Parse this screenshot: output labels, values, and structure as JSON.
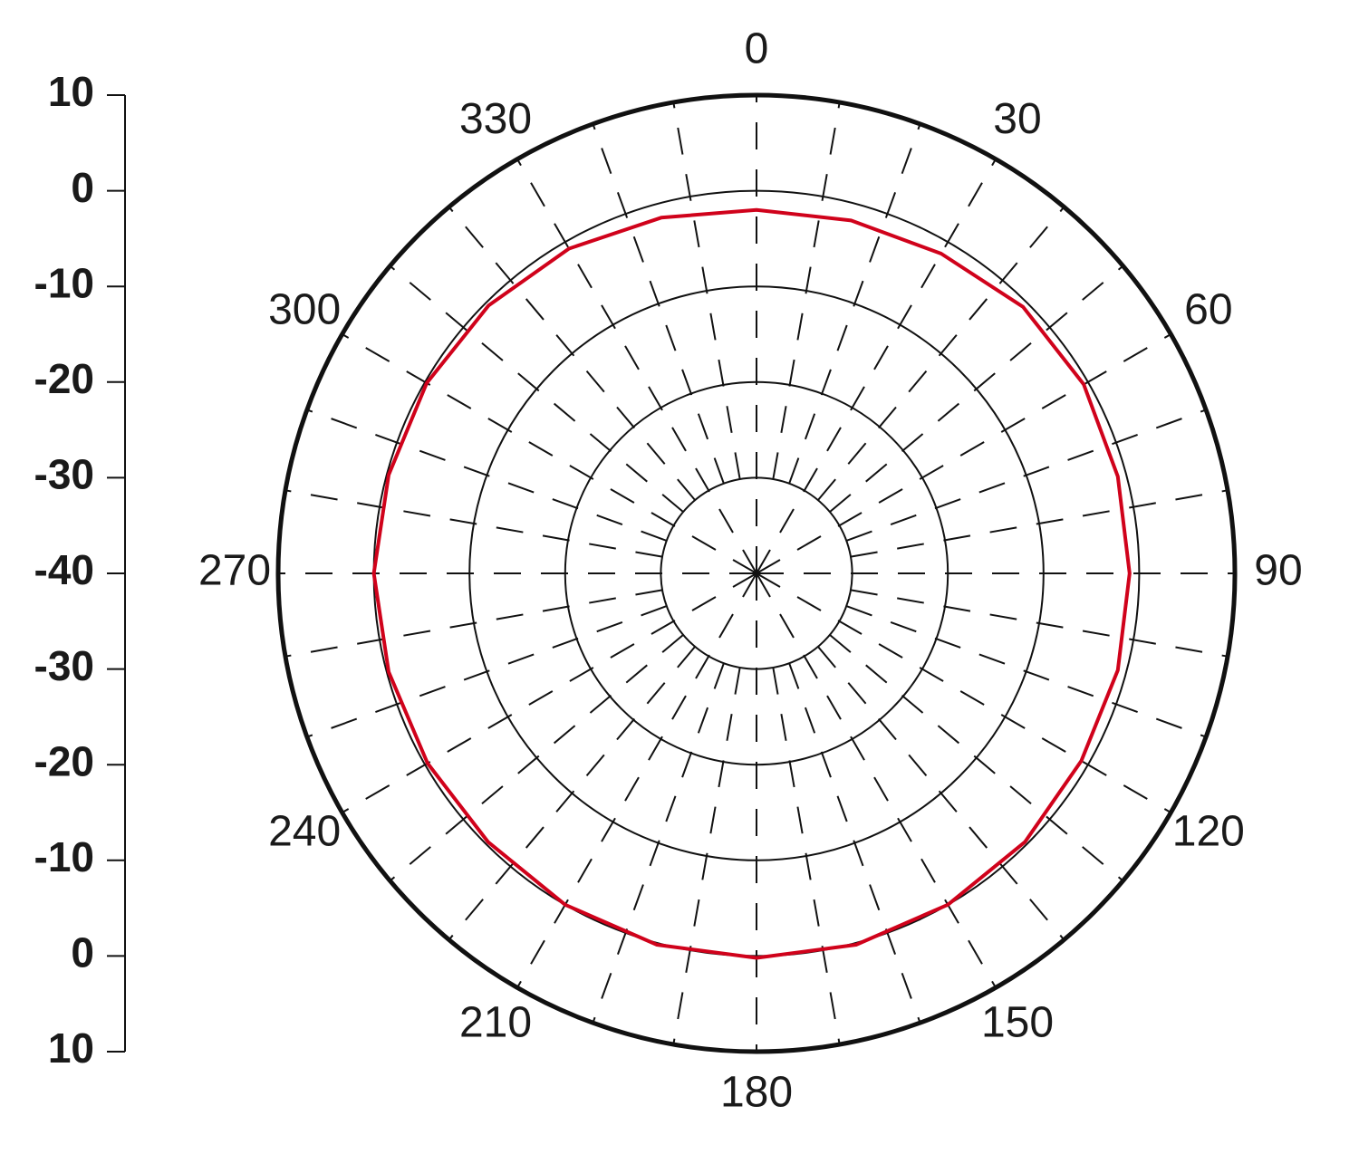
{
  "chart_data": {
    "type": "polar",
    "theta": [
      0,
      15,
      30,
      45,
      60,
      75,
      90,
      105,
      120,
      135,
      150,
      165,
      180,
      195,
      210,
      225,
      240,
      255,
      270,
      285,
      300,
      315,
      330,
      345
    ],
    "series": [
      {
        "color": "#d0021b",
        "values": [
          -2,
          -1.8,
          -1.4,
          -0.6,
          -0.5,
          -0.9,
          -1,
          -0.9,
          -0.8,
          -0.3,
          0,
          0.2,
          0.2,
          0.2,
          0,
          -0.3,
          -0.3,
          -0.2,
          0,
          -0.2,
          -0.2,
          -0.4,
          -0.8,
          -1.5
        ]
      }
    ],
    "rlim": [
      -40,
      10
    ],
    "rticks": [
      -30,
      -20,
      -10,
      0
    ],
    "thetaticks": [
      0,
      30,
      60,
      90,
      120,
      150,
      180,
      210,
      240,
      270,
      300,
      330
    ],
    "scale_ticks": [
      10,
      0,
      -10,
      -20,
      -30,
      -40,
      -30,
      -20,
      -10,
      0,
      10
    ]
  }
}
